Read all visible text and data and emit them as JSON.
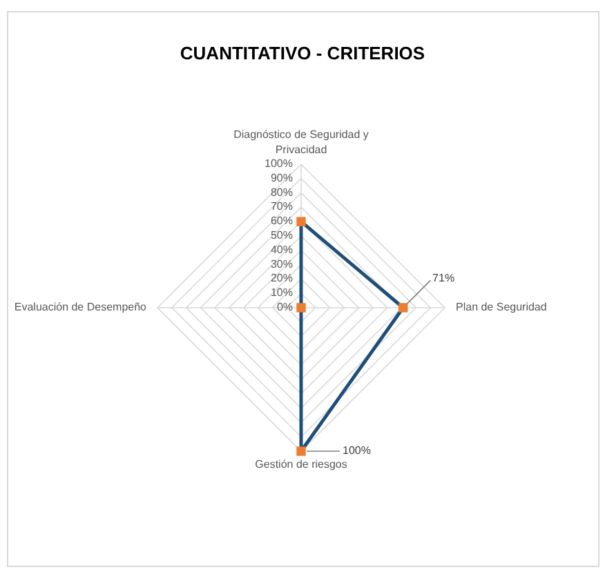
{
  "chart_data": {
    "type": "radar",
    "title": "CUANTITATIVO - CRITERIOS",
    "categories": [
      "Diagnóstico de Seguridad y Privacidad",
      "Plan de Seguridad",
      "Gestión de riesgos",
      "Evaluación de Desempeño"
    ],
    "series": [
      {
        "color": "#1f4e79",
        "colors": [
          "#ed7d31",
          "#ed7d31",
          "#ed7d31",
          "#ed7d31"
        ],
        "values": [
          60,
          71,
          100,
          0
        ],
        "value_labels": [
          null,
          "71%",
          "100%",
          null
        ]
      }
    ],
    "ylim": [
      0,
      100
    ],
    "yticks": [
      {
        "value": 0,
        "label": "0%"
      },
      {
        "value": 10,
        "label": "10%"
      },
      {
        "value": 20,
        "label": "20%"
      },
      {
        "value": 30,
        "label": "30%"
      },
      {
        "value": 40,
        "label": "40%"
      },
      {
        "value": 50,
        "label": "50%"
      },
      {
        "value": 60,
        "label": "60%"
      },
      {
        "value": 70,
        "label": "70%"
      },
      {
        "value": 80,
        "label": "80%"
      },
      {
        "value": 90,
        "label": "90%"
      },
      {
        "value": 100,
        "label": "100%"
      }
    ],
    "grid": true,
    "marker": "square",
    "line_style": "solid"
  }
}
